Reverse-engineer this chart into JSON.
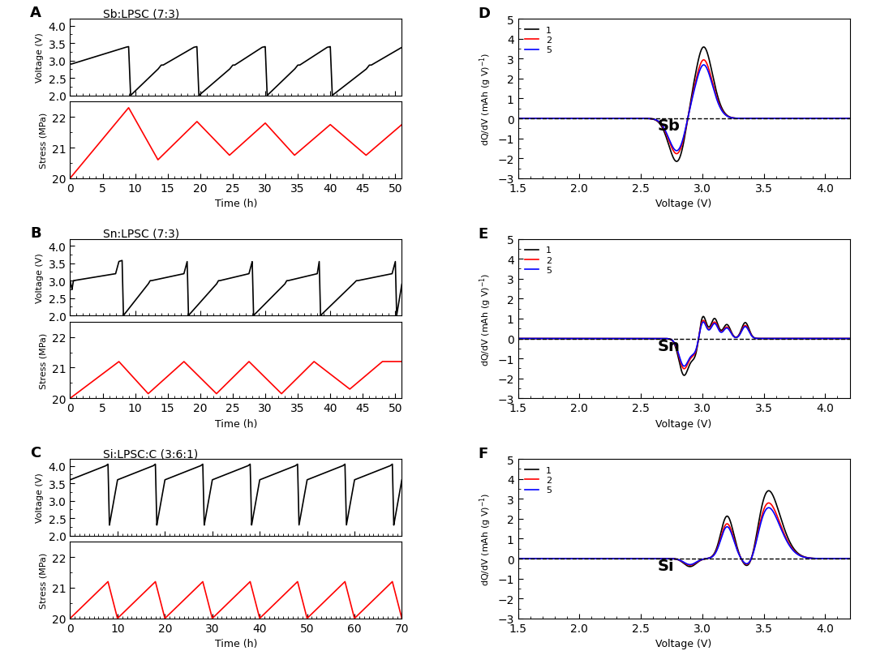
{
  "panel_A_title": "Sb:LPSC (7:3)",
  "panel_B_title": "Sn:LPSC (7:3)",
  "panel_C_title": "Si:LPSC:C (3:6:1)",
  "panel_D_label": "Sb",
  "panel_E_label": "Sn",
  "panel_F_label": "Si",
  "voltage_ylim": [
    2.0,
    4.2
  ],
  "voltage_yticks": [
    2.0,
    2.5,
    3.0,
    3.5,
    4.0
  ],
  "stress_ylim": [
    20.0,
    22.5
  ],
  "stress_yticks": [
    20.0,
    21.0,
    22.0
  ],
  "time_A_xlim": [
    0,
    51
  ],
  "time_A_xticks": [
    0,
    5,
    10,
    15,
    20,
    25,
    30,
    35,
    40,
    45,
    50
  ],
  "time_B_xlim": [
    0,
    51
  ],
  "time_B_xticks": [
    0,
    5,
    10,
    15,
    20,
    25,
    30,
    35,
    40,
    45,
    50
  ],
  "time_C_xlim": [
    0,
    70
  ],
  "time_C_xticks": [
    0,
    10,
    20,
    30,
    40,
    50,
    60,
    70
  ],
  "dqdv_ylim": [
    -3,
    5
  ],
  "dqdv_yticks": [
    -3,
    -2,
    -1,
    0,
    1,
    2,
    3,
    4,
    5
  ],
  "voltage_xlim": [
    1.5,
    4.2
  ],
  "voltage_xticks": [
    1.5,
    2.0,
    2.5,
    3.0,
    3.5,
    4.0
  ],
  "panel_labels_left": [
    "A",
    "B",
    "C"
  ],
  "panel_labels_right": [
    "D",
    "E",
    "F"
  ],
  "element_labels": [
    "Sb",
    "Sn",
    "Si"
  ],
  "legend_labels": [
    "1",
    "2",
    "5"
  ],
  "background": "#ffffff"
}
